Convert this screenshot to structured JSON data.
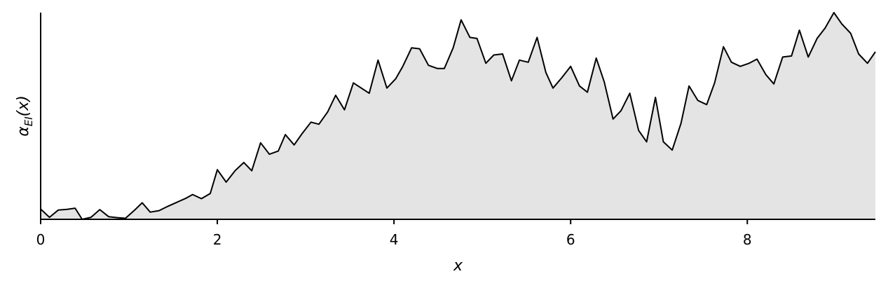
{
  "chart_data": {
    "type": "area",
    "xlabel": "x",
    "ylabel": {
      "base": "α",
      "sub": "EI",
      "suffix": "(x)"
    },
    "xlim": [
      0,
      9.45
    ],
    "ylim": [
      0,
      1
    ],
    "xticks": [
      0,
      2,
      4,
      6,
      8
    ],
    "xtick_labels": [
      "0",
      "2",
      "4",
      "6",
      "8"
    ],
    "yticks": [],
    "grid": false,
    "legend": "none",
    "fill_color": "#e4e4e4",
    "line_color": "#000000",
    "x": [
      0.0,
      0.1,
      0.2,
      0.3,
      0.39,
      0.47,
      0.57,
      0.67,
      0.77,
      0.87,
      0.96,
      1.06,
      1.15,
      1.24,
      1.34,
      1.44,
      1.54,
      1.64,
      1.72,
      1.82,
      1.92,
      2.0,
      2.1,
      2.2,
      2.3,
      2.39,
      2.49,
      2.59,
      2.69,
      2.77,
      2.87,
      2.96,
      3.06,
      3.15,
      3.25,
      3.34,
      3.44,
      3.54,
      3.63,
      3.72,
      3.82,
      3.92,
      4.02,
      4.1,
      4.2,
      4.29,
      4.39,
      4.49,
      4.57,
      4.67,
      4.76,
      4.86,
      4.94,
      5.04,
      5.13,
      5.23,
      5.33,
      5.42,
      5.52,
      5.62,
      5.72,
      5.8,
      5.9,
      6.0,
      6.1,
      6.19,
      6.29,
      6.38,
      6.48,
      6.57,
      6.67,
      6.77,
      6.86,
      6.96,
      7.05,
      7.15,
      7.25,
      7.34,
      7.44,
      7.54,
      7.63,
      7.73,
      7.82,
      7.92,
      8.02,
      8.11,
      8.21,
      8.3,
      8.4,
      8.5,
      8.59,
      8.69,
      8.79,
      8.88,
      8.98,
      9.07,
      9.17,
      9.26,
      9.36,
      9.45
    ],
    "values": [
      0.05,
      0.01,
      0.045,
      0.048,
      0.054,
      0.0,
      0.01,
      0.047,
      0.013,
      0.008,
      0.005,
      0.043,
      0.08,
      0.035,
      0.042,
      0.063,
      0.082,
      0.101,
      0.12,
      0.1,
      0.125,
      0.24,
      0.18,
      0.235,
      0.275,
      0.235,
      0.37,
      0.315,
      0.33,
      0.41,
      0.36,
      0.415,
      0.47,
      0.46,
      0.52,
      0.6,
      0.53,
      0.66,
      0.635,
      0.61,
      0.77,
      0.635,
      0.68,
      0.74,
      0.83,
      0.825,
      0.745,
      0.73,
      0.73,
      0.83,
      0.965,
      0.88,
      0.875,
      0.755,
      0.795,
      0.8,
      0.67,
      0.77,
      0.76,
      0.88,
      0.71,
      0.635,
      0.685,
      0.74,
      0.645,
      0.615,
      0.78,
      0.665,
      0.485,
      0.525,
      0.61,
      0.43,
      0.375,
      0.59,
      0.375,
      0.335,
      0.465,
      0.645,
      0.575,
      0.555,
      0.66,
      0.835,
      0.76,
      0.74,
      0.755,
      0.775,
      0.7,
      0.655,
      0.785,
      0.79,
      0.915,
      0.785,
      0.875,
      0.925,
      1.0,
      0.945,
      0.9,
      0.8,
      0.755,
      0.81
    ]
  }
}
